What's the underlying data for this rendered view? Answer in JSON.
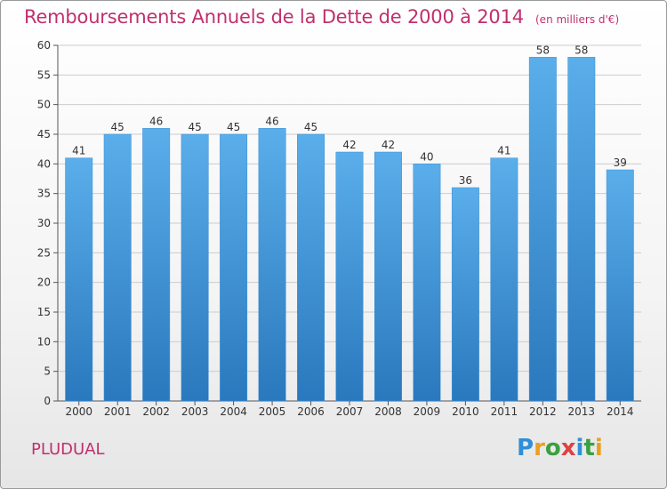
{
  "header": {
    "title": "Remboursements Annuels de la Dette de 2000 à 2014",
    "subtitle": "(en milliers d'€)"
  },
  "footer": {
    "commune": "PLUDUAL",
    "logo_text": "Proxiti",
    "logo_letters": [
      {
        "ch": "P",
        "color": "#2f8fd8"
      },
      {
        "ch": "r",
        "color": "#e8a020"
      },
      {
        "ch": "o",
        "color": "#3aa040"
      },
      {
        "ch": "x",
        "color": "#e04040"
      },
      {
        "ch": "i",
        "color": "#2f8fd8"
      },
      {
        "ch": "t",
        "color": "#3aa040"
      },
      {
        "ch": "i",
        "color": "#e8a020"
      }
    ]
  },
  "colors": {
    "bar_top": "#5aaeea",
    "bar_bottom": "#2a78bd",
    "title": "#c0306e",
    "grid": "#cccccc"
  },
  "chart_data": {
    "type": "bar",
    "title": "Remboursements Annuels de la Dette de 2000 à 2014",
    "subtitle": "(en milliers d'€)",
    "categories": [
      "2000",
      "2001",
      "2002",
      "2003",
      "2004",
      "2005",
      "2006",
      "2007",
      "2008",
      "2009",
      "2010",
      "2011",
      "2012",
      "2013",
      "2014"
    ],
    "values": [
      41,
      45,
      46,
      45,
      45,
      46,
      45,
      42,
      42,
      40,
      36,
      41,
      58,
      58,
      39
    ],
    "ylim": [
      0,
      60
    ],
    "yticks": [
      0,
      5,
      10,
      15,
      20,
      25,
      30,
      35,
      40,
      45,
      50,
      55,
      60
    ],
    "xlabel": "",
    "ylabel": "",
    "grid": true
  }
}
